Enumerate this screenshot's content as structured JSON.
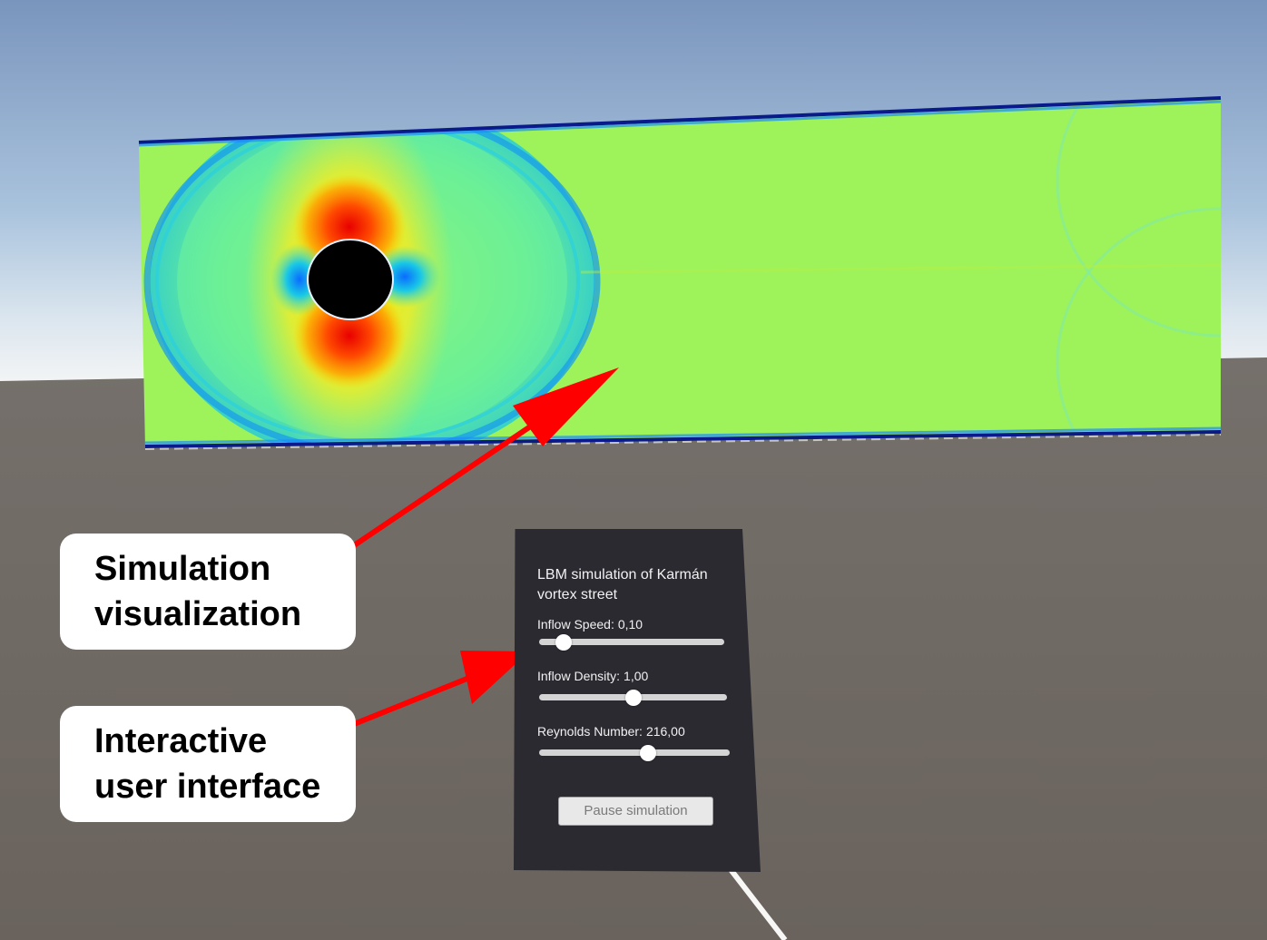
{
  "scene": {
    "sky_top_color": "#7a95bd",
    "sky_bottom_color": "#e8eef2",
    "ground_color": "#6b645e",
    "pointer_ray_color": "#ffffff"
  },
  "simulation_panel": {
    "field_color": "#9ef35a",
    "obstacle_color": "#000000",
    "wall_color": "#0a1a8a"
  },
  "callouts": {
    "simulation": {
      "line1": "Simulation",
      "line2": "visualization"
    },
    "interface": {
      "line1": "Interactive",
      "line2": "user interface"
    },
    "arrow_color": "#ff0000"
  },
  "ui_panel": {
    "title": "LBM simulation of Karmán vortex street",
    "sliders": [
      {
        "label": "Inflow Speed:",
        "value_text": "0,10",
        "fraction": 0.13
      },
      {
        "label": "Inflow Density:",
        "value_text": "1,00",
        "fraction": 0.5
      },
      {
        "label": "Reynolds Number:",
        "value_text": "216,00",
        "fraction": 0.57
      }
    ],
    "pause_button_label": "Pause simulation"
  }
}
